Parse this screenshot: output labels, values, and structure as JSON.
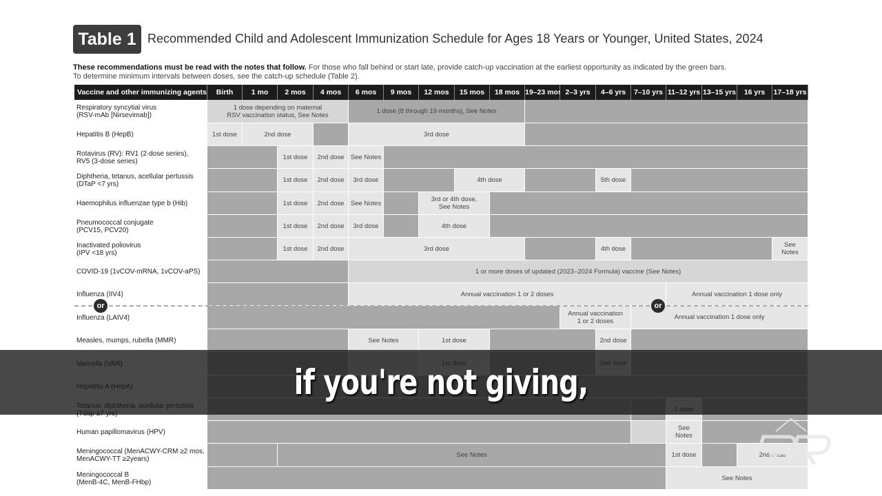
{
  "header": {
    "badge": "Table 1",
    "title": "Recommended Child and Adolescent Immunization Schedule for Ages 18 Years or Younger, United States, 2024"
  },
  "intro": {
    "bold": "These recommendations must be read with the notes that follow.",
    "rest": " For those who fall behind or start late, provide catch-up vaccination at the earliest opportunity as indicated by the green bars.",
    "line2": "To determine minimum intervals between doses, see the catch-up schedule (Table 2)."
  },
  "columns": [
    "Vaccine and other immunizing agents",
    "Birth",
    "1 mo",
    "2 mos",
    "4 mos",
    "6 mos",
    "9 mos",
    "12 mos",
    "15 mos",
    "18 mos",
    "19–23 mos",
    "2–3 yrs",
    "4–6 yrs",
    "7–10 yrs",
    "11–12 yrs",
    "13–15 yrs",
    "16 yrs",
    "17–18 yrs"
  ],
  "rows": [
    {
      "label": [
        "Respiratory syncytial virus",
        "(RSV-mAb [Nirsevimab])"
      ]
    },
    {
      "label": [
        "Hepatitis B (HepB)"
      ]
    },
    {
      "label": [
        "Rotavirus (RV): RV1 (2-dose series),",
        "RV5 (3-dose series)"
      ]
    },
    {
      "label": [
        "Diphtheria, tetanus, acellular pertussis",
        "(DTaP <7 yrs)"
      ]
    },
    {
      "label": [
        "Haemophilus influenzae type b (Hib)"
      ]
    },
    {
      "label": [
        "Pneumococcal conjugate",
        "(PCV15, PCV20)"
      ]
    },
    {
      "label": [
        "Inactivated poliovirus",
        "(IPV <18 yrs)"
      ]
    },
    {
      "label": [
        "COVID-19 (1vCOV-mRNA, 1vCOV-aPS)"
      ]
    },
    {
      "label": [
        "Influenza (IIV4)"
      ]
    },
    {
      "label": [
        "Influenza (LAIV4)"
      ]
    },
    {
      "label": [
        "Measles, mumps, rubella (MMR)"
      ]
    },
    {
      "label": [
        "Varicella (VAR)"
      ]
    },
    {
      "label": [
        "Hepatitis A (HepA)"
      ]
    },
    {
      "label": [
        "Tetanus, diphtheria, acellular pertussis",
        "(Tdap ≥7 yrs)"
      ]
    },
    {
      "label": [
        "Human papillomavirus (HPV)"
      ]
    },
    {
      "label": [
        "Meningococcal (MenACWY-CRM ≥2 mos,",
        "MenACWY-TT ≥2years)"
      ]
    },
    {
      "label": [
        "Meningococcal B",
        "(MenB-4C, MenB-FHbp)"
      ]
    }
  ],
  "cells_text": {
    "rsv1": "1 dose depending on maternal",
    "rsv2": "RSV vaccination status, See Notes",
    "rsv3": "1 dose (8 through 19 months), See Notes",
    "d1": "1st dose",
    "d2": "2nd dose",
    "d3": "3rd dose",
    "d4": "4th dose",
    "d5": "5th dose",
    "see_notes": "See Notes",
    "hib34a": "3rd or 4th dose,",
    "hib34b": "See Notes",
    "covid": "1 or more doses of updated (2023–2024 Formula) vaccine (See Notes)",
    "flu_annual": "Annual vaccination 1 or 2 doses",
    "flu_one": "Annual vaccination 1 dose only",
    "laiv_a": "Annual vaccination",
    "laiv_b": "1 or 2 doses",
    "one_dose": "1 dose",
    "see": "See",
    "notes": "Notes",
    "or": "or"
  },
  "caption": "if you're not giving,",
  "logo_icon": "rr-logo-icon"
}
